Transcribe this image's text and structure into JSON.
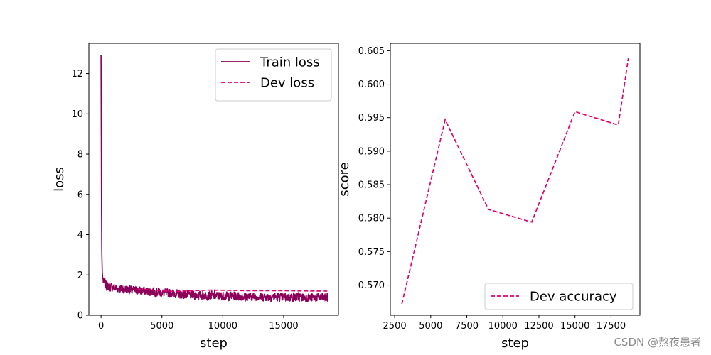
{
  "chart_data": [
    {
      "type": "line",
      "xlabel": "step",
      "ylabel": "loss",
      "xlim": [
        -1000,
        19500
      ],
      "ylim": [
        0,
        13.5
      ],
      "xticks": [
        0,
        5000,
        10000,
        15000
      ],
      "yticks": [
        0,
        2,
        4,
        6,
        8,
        10,
        12
      ],
      "grid": false,
      "legend_position": "top-right",
      "series": [
        {
          "name": "Train loss",
          "style": "solid",
          "color": "#8b0059",
          "x": [
            0,
            50,
            100,
            150,
            200,
            300,
            400,
            500,
            700,
            1000,
            1500,
            2000,
            2500,
            3000,
            3500,
            4000,
            5000,
            6000,
            7000,
            8000,
            9000,
            10000,
            11000,
            12000,
            13000,
            14000,
            15000,
            16000,
            17000,
            18000,
            18600
          ],
          "y": [
            12.9,
            3.5,
            2.1,
            1.8,
            1.65,
            1.6,
            1.5,
            1.45,
            1.4,
            1.38,
            1.32,
            1.3,
            1.25,
            1.22,
            1.2,
            1.18,
            1.12,
            1.08,
            1.02,
            1.0,
            0.98,
            0.96,
            0.95,
            0.93,
            0.92,
            0.91,
            0.9,
            0.89,
            0.88,
            0.87,
            0.87
          ]
        },
        {
          "name": "Dev loss",
          "style": "dashed",
          "color": "#e0006f",
          "x": [
            3000,
            6000,
            9000,
            12000,
            15000,
            18000,
            18700
          ],
          "y": [
            1.3,
            1.18,
            1.25,
            1.22,
            1.22,
            1.2,
            1.2
          ]
        }
      ]
    },
    {
      "type": "line",
      "xlabel": "step",
      "ylabel": "score",
      "xlim": [
        2200,
        19500
      ],
      "ylim": [
        0.5655,
        0.6061
      ],
      "xticks": [
        2500,
        5000,
        7500,
        10000,
        12500,
        15000,
        17500
      ],
      "xtick_labels": [
        "2500",
        "5000",
        "7500",
        "10000",
        "12500",
        "15000",
        "17500"
      ],
      "yticks": [
        0.57,
        0.575,
        0.58,
        0.585,
        0.59,
        0.595,
        0.6,
        0.605
      ],
      "ytick_labels": [
        "0.570",
        "0.575",
        "0.580",
        "0.585",
        "0.590",
        "0.595",
        "0.600",
        "0.605"
      ],
      "grid": false,
      "legend_position": "bottom-right",
      "series": [
        {
          "name": "Dev accuracy",
          "style": "dashed",
          "color": "#e0006f",
          "x": [
            3000,
            6000,
            9000,
            12000,
            15000,
            18000,
            18700
          ],
          "y": [
            0.5672,
            0.5947,
            0.5813,
            0.5794,
            0.5959,
            0.5939,
            0.6039
          ]
        }
      ]
    }
  ],
  "watermark": "CSDN @熬夜患者"
}
